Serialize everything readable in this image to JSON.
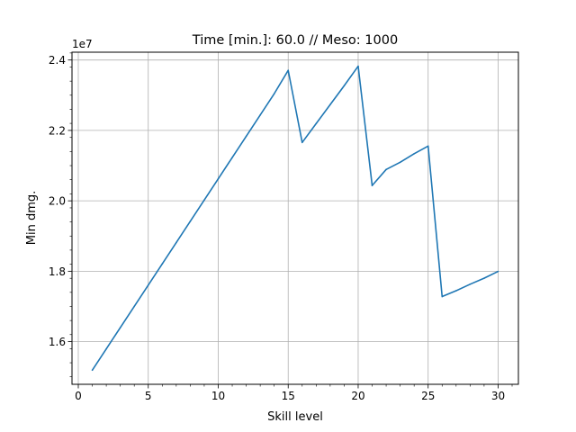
{
  "chart_data": {
    "type": "line",
    "title": "Time [min.]: 60.0 // Meso: 1000",
    "xlabel": "Skill level",
    "ylabel": "Min dmg.",
    "offset_label": "1e7",
    "xlim": [
      -0.45,
      31.45
    ],
    "ylim": [
      1.4788,
      2.4222
    ],
    "grid": true,
    "x_ticks": [
      0,
      5,
      10,
      15,
      20,
      25,
      30
    ],
    "x_tick_labels": [
      "0",
      "5",
      "10",
      "15",
      "20",
      "25",
      "30"
    ],
    "y_ticks": [
      1.6,
      1.8,
      2.0,
      2.2,
      2.4
    ],
    "y_tick_labels": [
      "1.6",
      "1.8",
      "2.0",
      "2.2",
      "2.4"
    ],
    "series": [
      {
        "color": "#1f77b4",
        "x": [
          1,
          2,
          3,
          4,
          5,
          6,
          7,
          8,
          9,
          10,
          11,
          12,
          13,
          14,
          15,
          16,
          17,
          18,
          19,
          20,
          21,
          22,
          23,
          24,
          25,
          26,
          27,
          28,
          29,
          30
        ],
        "y": [
          1.519,
          1.5794,
          1.6398,
          1.7002,
          1.7606,
          1.821,
          1.8814,
          1.9418,
          2.0022,
          2.0626,
          2.123,
          2.1834,
          2.2438,
          2.3042,
          2.3705,
          2.1658,
          2.2195,
          2.2732,
          2.3269,
          2.3824,
          2.0434,
          2.089,
          2.1095,
          2.1338,
          2.1555,
          1.728,
          1.7446,
          1.7631,
          1.7801,
          1.7995
        ]
      }
    ]
  }
}
